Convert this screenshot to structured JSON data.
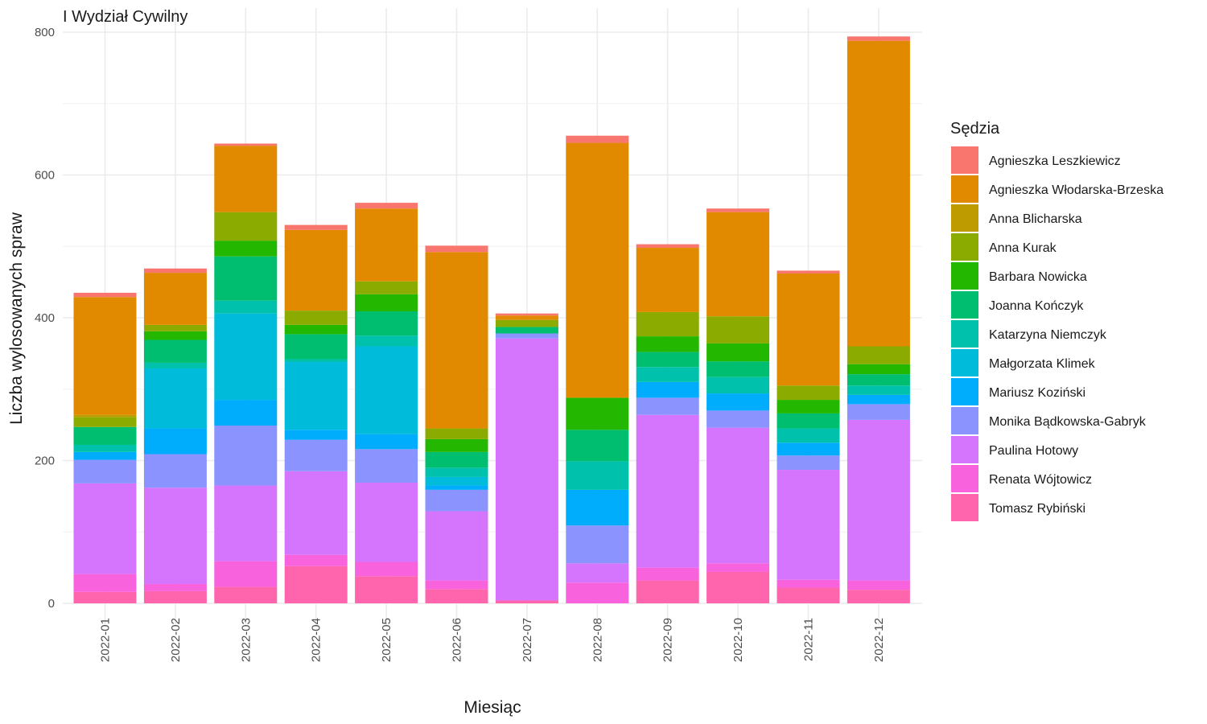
{
  "chart_data": {
    "type": "bar",
    "stacked": true,
    "title": "I Wydział Cywilny",
    "xlabel": "Miesiąc",
    "ylabel": "Liczba wylosowanych spraw",
    "ylim": [
      0,
      800
    ],
    "yticks": [
      0,
      200,
      400,
      600,
      800
    ],
    "grid": true,
    "legend_title": "Sędzia",
    "legend_position": "right",
    "categories": [
      "2022-01",
      "2022-02",
      "2022-03",
      "2022-04",
      "2022-05",
      "2022-06",
      "2022-07",
      "2022-08",
      "2022-09",
      "2022-10",
      "2022-11",
      "2022-12"
    ],
    "series": [
      {
        "name": "Agnieszka Leszkiewicz",
        "color": "#F8766D",
        "values": [
          6,
          6,
          3,
          7,
          8,
          9,
          3,
          10,
          5,
          5,
          4,
          6
        ]
      },
      {
        "name": "Agnieszka Włodarska-Brzeska",
        "color": "#E18A00",
        "values": [
          165,
          73,
          93,
          113,
          102,
          247,
          6,
          357,
          90,
          146,
          157,
          428
        ]
      },
      {
        "name": "Anna Blicharska",
        "color": "#BE9C00",
        "values": [
          3,
          0,
          0,
          0,
          0,
          0,
          0,
          0,
          0,
          0,
          0,
          0
        ]
      },
      {
        "name": "Anna Kurak",
        "color": "#8CAB00",
        "values": [
          14,
          9,
          40,
          20,
          18,
          15,
          10,
          0,
          34,
          38,
          20,
          25
        ]
      },
      {
        "name": "Barbara Nowicka",
        "color": "#24B700",
        "values": [
          0,
          12,
          22,
          13,
          24,
          18,
          0,
          45,
          22,
          25,
          19,
          14
        ]
      },
      {
        "name": "Joanna Kończyk",
        "color": "#00BE70",
        "values": [
          25,
          32,
          62,
          35,
          34,
          22,
          9,
          44,
          21,
          22,
          21,
          16
        ]
      },
      {
        "name": "Katarzyna Niemczyk",
        "color": "#00C1AB",
        "values": [
          10,
          8,
          18,
          4,
          15,
          13,
          0,
          40,
          21,
          23,
          20,
          13
        ]
      },
      {
        "name": "Małgorzata Klimek",
        "color": "#00BBDA",
        "values": [
          0,
          84,
          121,
          95,
          123,
          12,
          0,
          0,
          0,
          0,
          0,
          0
        ]
      },
      {
        "name": "Mariusz Koziński",
        "color": "#00ACFC",
        "values": [
          11,
          36,
          36,
          14,
          21,
          6,
          0,
          50,
          22,
          24,
          18,
          13
        ]
      },
      {
        "name": "Monika Bądkowska-Gabryk",
        "color": "#8B93FF",
        "values": [
          33,
          47,
          84,
          44,
          47,
          30,
          7,
          53,
          24,
          24,
          20,
          22
        ]
      },
      {
        "name": "Paulina Hotowy",
        "color": "#D575FE",
        "values": [
          127,
          135,
          106,
          117,
          111,
          97,
          367,
          27,
          214,
          190,
          154,
          225
        ]
      },
      {
        "name": "Renata Wójtowicz",
        "color": "#F962DD",
        "values": [
          25,
          10,
          36,
          16,
          20,
          12,
          0,
          29,
          18,
          12,
          11,
          13
        ]
      },
      {
        "name": "Tomasz Rybiński",
        "color": "#FF65AC",
        "values": [
          16,
          17,
          23,
          52,
          38,
          20,
          4,
          0,
          32,
          44,
          22,
          19
        ]
      }
    ]
  }
}
